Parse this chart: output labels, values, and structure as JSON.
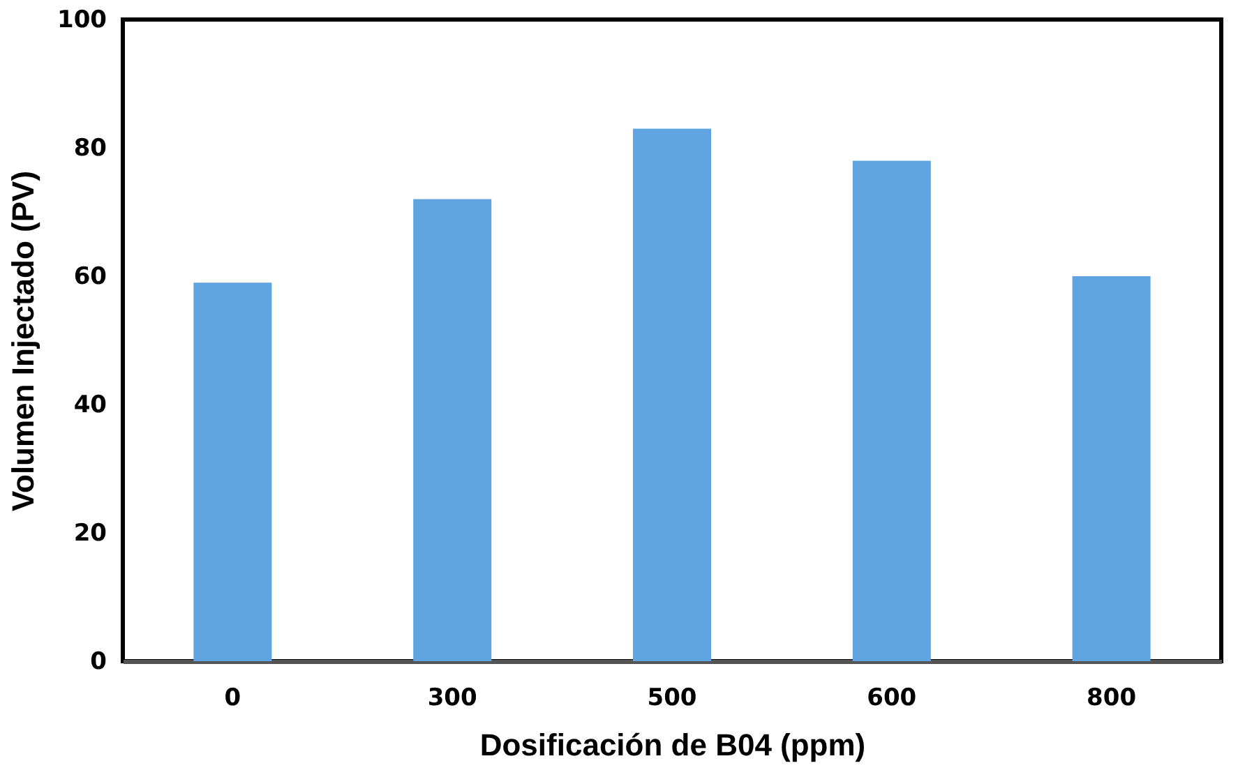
{
  "chart_data": {
    "type": "bar",
    "xlabel": "Dosificación de B04 (ppm)",
    "ylabel": "Volumen Injectado (PV)",
    "categories": [
      "0",
      "300",
      "500",
      "600",
      "800"
    ],
    "values": [
      59,
      72,
      83,
      78,
      60
    ],
    "color": "#5fa3e0",
    "ylim": [
      0,
      100
    ],
    "yticks": [
      0,
      20,
      40,
      60,
      80,
      100
    ],
    "grid": false
  }
}
